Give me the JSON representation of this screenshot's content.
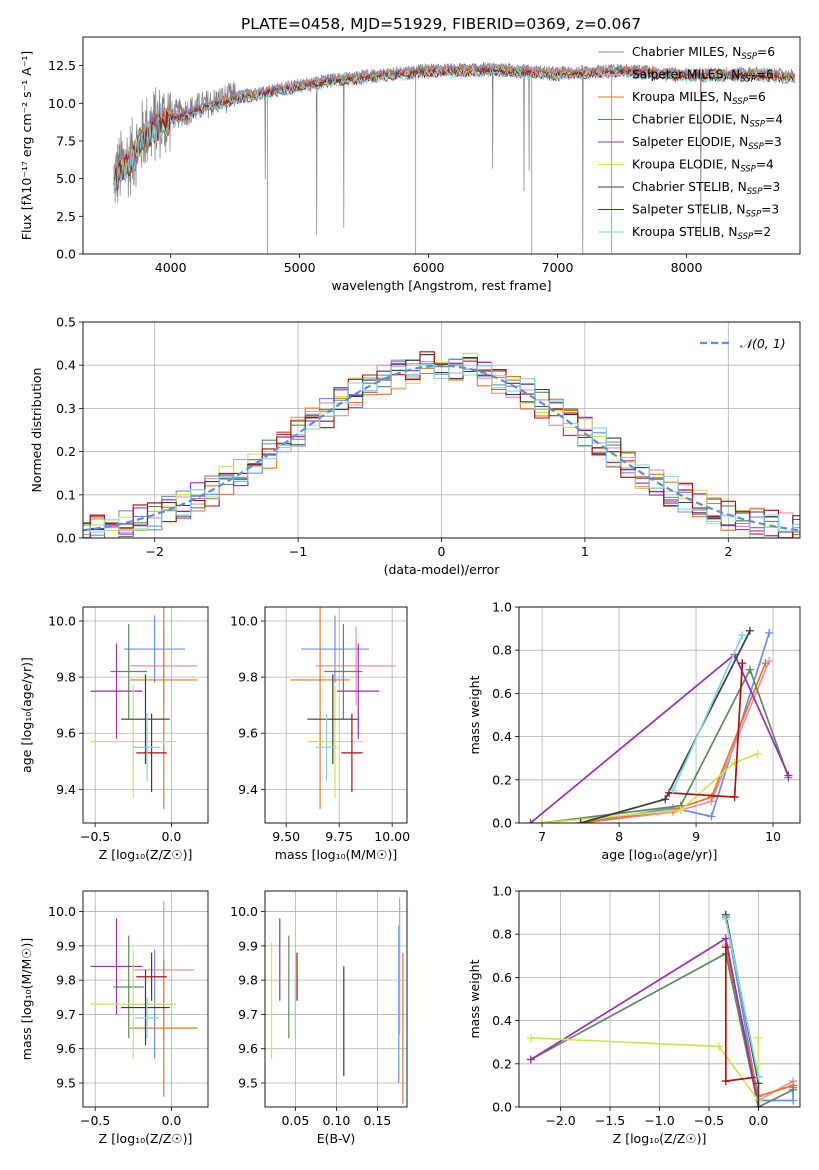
{
  "figure_title": "PLATE=0458, MJD=51929, FIBERID=0369, z=0.067",
  "palette": {
    "Chabrier MILES": "#6b8fe6",
    "Salpeter MILES": "#e58fb8",
    "Kroupa MILES": "#e6781e",
    "Chabrier ELODIE": "#5f8a5f",
    "Salpeter ELODIE": "#9a2fb0",
    "Kroupa ELODIE": "#d2e34f",
    "Chabrier STELIB": "#3d3d3d",
    "Salpeter STELIB": "#b00f0f",
    "Kroupa STELIB": "#7fd6e6",
    "data": "#808080",
    "gaussian": "#5b8fd9"
  },
  "chart_data": [
    {
      "id": "spectrum",
      "type": "line",
      "xlabel": "wavelength [Angstrom, rest frame]",
      "ylabel": "Flux [fλ10⁻¹⁷ erg cm⁻² s⁻¹ A⁻¹]",
      "xlim": [
        3320,
        8880
      ],
      "ylim": [
        0,
        14.4
      ],
      "xticks": [
        4000,
        5000,
        6000,
        7000,
        8000
      ],
      "yticks": [
        0.0,
        2.5,
        5.0,
        7.5,
        10.0,
        12.5
      ],
      "ytick_labels": [
        "0.0",
        "2.5",
        "5.0",
        "7.5",
        "10.0",
        "12.5"
      ],
      "continuum_points": [
        [
          3560,
          5.0
        ],
        [
          3620,
          5.8
        ],
        [
          3700,
          6.5
        ],
        [
          3800,
          8.1
        ],
        [
          3900,
          8.7
        ],
        [
          4000,
          9.2
        ],
        [
          4100,
          9.4
        ],
        [
          4300,
          10.0
        ],
        [
          4500,
          10.5
        ],
        [
          4800,
          11.0
        ],
        [
          5200,
          11.6
        ],
        [
          5600,
          12.0
        ],
        [
          6000,
          12.3
        ],
        [
          6500,
          12.4
        ],
        [
          7000,
          12.1
        ],
        [
          7500,
          12.3
        ],
        [
          8000,
          12.0
        ],
        [
          8500,
          12.1
        ],
        [
          8840,
          11.9
        ]
      ],
      "legend": [
        {
          "label": "Chabrier MILES, N_SSP=6",
          "pre": "Chabrier MILES, N",
          "sub": "SSP",
          "post": "=6",
          "color_key": "Chabrier MILES"
        },
        {
          "label": "Salpeter MILES, N_SSP=6",
          "pre": "Salpeter MILES, N",
          "sub": "SSP",
          "post": "=6",
          "color_key": "Salpeter MILES"
        },
        {
          "label": "Kroupa MILES, N_SSP=6",
          "pre": "Kroupa MILES, N",
          "sub": "SSP",
          "post": "=6",
          "color_key": "Kroupa MILES"
        },
        {
          "label": "Chabrier ELODIE, N_SSP=4",
          "pre": "Chabrier ELODIE, N",
          "sub": "SSP",
          "post": "=4",
          "color_key": "Chabrier ELODIE"
        },
        {
          "label": "Salpeter ELODIE, N_SSP=3",
          "pre": "Salpeter ELODIE, N",
          "sub": "SSP",
          "post": "=3",
          "color_key": "Salpeter ELODIE"
        },
        {
          "label": "Kroupa ELODIE, N_SSP=4",
          "pre": "Kroupa ELODIE, N",
          "sub": "SSP",
          "post": "=4",
          "color_key": "Kroupa ELODIE"
        },
        {
          "label": "Chabrier STELIB, N_SSP=3",
          "pre": "Chabrier STELIB, N",
          "sub": "SSP",
          "post": "=3",
          "color_key": "Chabrier STELIB"
        },
        {
          "label": "Salpeter STELIB, N_SSP=3",
          "pre": "Salpeter STELIB, N",
          "sub": "SSP",
          "post": "=3",
          "color_key": "Salpeter STELIB"
        },
        {
          "label": "Kroupa STELIB, N_SSP=2",
          "pre": "Kroupa STELIB, N",
          "sub": "SSP",
          "post": "=2",
          "color_key": "Kroupa STELIB"
        }
      ]
    },
    {
      "id": "residuals",
      "type": "histogram",
      "xlabel": "(data-model)/error",
      "ylabel": "Normed distribution",
      "xlim": [
        -2.5,
        2.5
      ],
      "ylim": [
        0,
        0.5
      ],
      "xticks": [
        -2,
        -1,
        0,
        1,
        2
      ],
      "xtick_labels": [
        "−2",
        "−1",
        "0",
        "1",
        "2"
      ],
      "yticks": [
        0.0,
        0.1,
        0.2,
        0.3,
        0.4,
        0.5
      ],
      "ytick_labels": [
        "0.0",
        "0.1",
        "0.2",
        "0.3",
        "0.4",
        "0.5"
      ],
      "bin_width": 0.1,
      "reference_curve": {
        "label": "N(0,1)",
        "mean": 0,
        "sigma": 1
      }
    },
    {
      "id": "age_vs_Z",
      "type": "errorbar",
      "xlabel": "Z [log₁₀(Z/Z☉)]",
      "ylabel": "age [log₁₀(age/yr)]",
      "xlim": [
        -0.58,
        0.24
      ],
      "ylim": [
        9.28,
        10.05
      ],
      "xticks": [
        -0.5,
        0.0
      ],
      "xtick_labels": [
        "−0.5",
        "0.0"
      ],
      "yticks": [
        9.4,
        9.6,
        9.8,
        10.0
      ],
      "ytick_labels": [
        "9.4",
        "9.6",
        "9.8",
        "10.0"
      ],
      "points": [
        {
          "series": "Chabrier MILES",
          "x": -0.11,
          "y": 9.9,
          "xerr": 0.2,
          "yerr": 0.12
        },
        {
          "series": "Salpeter MILES",
          "x": -0.05,
          "y": 9.84,
          "xerr": 0.22,
          "yerr": 0.14
        },
        {
          "series": "Kroupa MILES",
          "x": -0.05,
          "y": 9.79,
          "xerr": 0.22,
          "yerr": 0.46
        },
        {
          "series": "Chabrier ELODIE",
          "x": -0.28,
          "y": 9.82,
          "xerr": 0.12,
          "yerr": 0.17
        },
        {
          "series": "Salpeter ELODIE",
          "x": -0.36,
          "y": 9.75,
          "xerr": 0.17,
          "yerr": 0.17
        },
        {
          "series": "Kroupa ELODIE",
          "x": -0.25,
          "y": 9.57,
          "xerr": 0.28,
          "yerr": 0.2
        },
        {
          "series": "Chabrier STELIB",
          "x": -0.17,
          "y": 9.65,
          "xerr": 0.16,
          "yerr": 0.16
        },
        {
          "series": "Salpeter STELIB",
          "x": -0.13,
          "y": 9.53,
          "xerr": 0.1,
          "yerr": 0.14
        },
        {
          "series": "Kroupa STELIB",
          "x": -0.16,
          "y": 9.55,
          "xerr": 0.09,
          "yerr": 0.12
        }
      ]
    },
    {
      "id": "age_vs_mass",
      "type": "errorbar",
      "xlabel": "mass [log₁₀(M/M☉)]",
      "ylabel": "",
      "xlim": [
        9.4,
        10.07
      ],
      "ylim": [
        9.28,
        10.05
      ],
      "xticks": [
        9.5,
        9.75,
        10.0
      ],
      "xtick_labels": [
        "9.50",
        "9.75",
        "10.00"
      ],
      "yticks": [
        9.4,
        9.6,
        9.8,
        10.0
      ],
      "ytick_labels": [
        "9.4",
        "9.6",
        "9.8",
        "10.0"
      ],
      "points": [
        {
          "series": "Chabrier MILES",
          "x": 9.73,
          "y": 9.9,
          "xerr": 0.16,
          "yerr": 0.12
        },
        {
          "series": "Salpeter MILES",
          "x": 9.83,
          "y": 9.84,
          "xerr": 0.19,
          "yerr": 0.14
        },
        {
          "series": "Kroupa MILES",
          "x": 9.66,
          "y": 9.79,
          "xerr": 0.14,
          "yerr": 0.46
        },
        {
          "series": "Chabrier ELODIE",
          "x": 9.77,
          "y": 9.82,
          "xerr": 0.09,
          "yerr": 0.17
        },
        {
          "series": "Salpeter ELODIE",
          "x": 9.84,
          "y": 9.75,
          "xerr": 0.1,
          "yerr": 0.17
        },
        {
          "series": "Kroupa ELODIE",
          "x": 9.73,
          "y": 9.57,
          "xerr": 0.13,
          "yerr": 0.2
        },
        {
          "series": "Chabrier STELIB",
          "x": 9.72,
          "y": 9.65,
          "xerr": 0.12,
          "yerr": 0.16
        },
        {
          "series": "Salpeter STELIB",
          "x": 9.81,
          "y": 9.53,
          "xerr": 0.05,
          "yerr": 0.14
        },
        {
          "series": "Kroupa STELIB",
          "x": 9.69,
          "y": 9.55,
          "xerr": 0.05,
          "yerr": 0.12
        }
      ]
    },
    {
      "id": "weight_vs_age",
      "type": "line",
      "xlabel": "age [log₁₀(age/yr)]",
      "ylabel": "mass weight",
      "xlim": [
        6.7,
        10.35
      ],
      "ylim": [
        0,
        1.0
      ],
      "xticks": [
        7,
        8,
        9,
        10
      ],
      "xtick_labels": [
        "7",
        "8",
        "9",
        "10"
      ],
      "yticks": [
        0.0,
        0.2,
        0.4,
        0.6,
        0.8,
        1.0
      ],
      "ytick_labels": [
        "0.0",
        "0.2",
        "0.4",
        "0.6",
        "0.8",
        "1.0"
      ],
      "series": [
        {
          "series": "Chabrier MILES",
          "points": [
            [
              7.5,
              0.0
            ],
            [
              8.7,
              0.07
            ],
            [
              9.2,
              0.03
            ],
            [
              9.95,
              0.88
            ]
          ]
        },
        {
          "series": "Salpeter MILES",
          "points": [
            [
              7.5,
              0.0
            ],
            [
              8.7,
              0.05
            ],
            [
              9.2,
              0.1
            ],
            [
              9.95,
              0.75
            ]
          ]
        },
        {
          "series": "Kroupa MILES",
          "points": [
            [
              7.5,
              0.0
            ],
            [
              8.7,
              0.06
            ],
            [
              9.2,
              0.12
            ],
            [
              9.9,
              0.74
            ]
          ]
        },
        {
          "series": "Chabrier ELODIE",
          "points": [
            [
              7.0,
              0.0
            ],
            [
              8.8,
              0.08
            ],
            [
              9.7,
              0.71
            ],
            [
              10.2,
              0.21
            ]
          ]
        },
        {
          "series": "Salpeter ELODIE",
          "points": [
            [
              6.85,
              0.0
            ],
            [
              9.5,
              0.78
            ],
            [
              10.2,
              0.22
            ]
          ]
        },
        {
          "series": "Kroupa ELODIE",
          "points": [
            [
              7.0,
              0.0
            ],
            [
              8.8,
              0.06
            ],
            [
              9.5,
              0.28
            ],
            [
              9.8,
              0.32
            ]
          ]
        },
        {
          "series": "Chabrier STELIB",
          "points": [
            [
              7.5,
              0.0
            ],
            [
              8.6,
              0.11
            ],
            [
              9.7,
              0.89
            ]
          ]
        },
        {
          "series": "Salpeter STELIB",
          "points": [
            [
              8.65,
              0.14
            ],
            [
              9.5,
              0.12
            ],
            [
              9.6,
              0.74
            ]
          ]
        },
        {
          "series": "Kroupa STELIB",
          "points": [
            [
              8.7,
              0.15
            ],
            [
              9.6,
              0.87
            ]
          ]
        }
      ]
    },
    {
      "id": "mass_vs_Z",
      "type": "errorbar",
      "xlabel": "Z [log₁₀(Z/Z☉)]",
      "ylabel": "mass [log₁₀(M/M☉)]",
      "xlim": [
        -0.58,
        0.24
      ],
      "ylim": [
        9.43,
        10.06
      ],
      "xticks": [
        -0.5,
        0.0
      ],
      "xtick_labels": [
        "−0.5",
        "0.0"
      ],
      "yticks": [
        9.5,
        9.6,
        9.7,
        9.8,
        9.9,
        10.0
      ],
      "ytick_labels": [
        "9.5",
        "9.6",
        "9.7",
        "9.8",
        "9.9",
        "10.0"
      ],
      "points": [
        {
          "series": "Chabrier MILES",
          "x": -0.11,
          "y": 9.73,
          "xerr": 0.14,
          "yerr": 0.16
        },
        {
          "series": "Salpeter MILES",
          "x": -0.05,
          "y": 9.83,
          "xerr": 0.2,
          "yerr": 0.2
        },
        {
          "series": "Kroupa MILES",
          "x": -0.05,
          "y": 9.66,
          "xerr": 0.22,
          "yerr": 0.2
        },
        {
          "series": "Chabrier ELODIE",
          "x": -0.28,
          "y": 9.78,
          "xerr": 0.1,
          "yerr": 0.15
        },
        {
          "series": "Salpeter ELODIE",
          "x": -0.36,
          "y": 9.84,
          "xerr": 0.17,
          "yerr": 0.14
        },
        {
          "series": "Kroupa ELODIE",
          "x": -0.25,
          "y": 9.73,
          "xerr": 0.28,
          "yerr": 0.16
        },
        {
          "series": "Chabrier STELIB",
          "x": -0.17,
          "y": 9.72,
          "xerr": 0.16,
          "yerr": 0.11
        },
        {
          "series": "Salpeter STELIB",
          "x": -0.13,
          "y": 9.81,
          "xerr": 0.1,
          "yerr": 0.07
        },
        {
          "series": "Kroupa STELIB",
          "x": -0.16,
          "y": 9.69,
          "xerr": 0.08,
          "yerr": 0.06
        }
      ]
    },
    {
      "id": "mass_vs_ebv",
      "type": "errorbar",
      "xlabel": "E(B-V)",
      "ylabel": "",
      "xlim": [
        0.013,
        0.186
      ],
      "ylim": [
        9.43,
        10.06
      ],
      "xticks": [
        0.05,
        0.1,
        0.15
      ],
      "xtick_labels": [
        "0.05",
        "0.10",
        "0.15"
      ],
      "yticks": [
        9.5,
        9.6,
        9.7,
        9.8,
        9.9,
        10.0
      ],
      "ytick_labels": [
        "9.5",
        "9.6",
        "9.7",
        "9.8",
        "9.9",
        "10.0"
      ],
      "points": [
        {
          "series": "Chabrier MILES",
          "x": 0.176,
          "y": 9.73,
          "xerr": 0.0,
          "yerr": 0.23
        },
        {
          "series": "Salpeter MILES",
          "x": 0.177,
          "y": 9.84,
          "xerr": 0.0,
          "yerr": 0.2
        },
        {
          "series": "Kroupa MILES",
          "x": 0.181,
          "y": 9.66,
          "xerr": 0.0,
          "yerr": 0.22
        },
        {
          "series": "Chabrier ELODIE",
          "x": 0.042,
          "y": 9.78,
          "xerr": 0.0,
          "yerr": 0.15
        },
        {
          "series": "Salpeter ELODIE",
          "x": 0.031,
          "y": 9.86,
          "xerr": 0.0,
          "yerr": 0.12
        },
        {
          "series": "Kroupa ELODIE",
          "x": 0.021,
          "y": 9.74,
          "xerr": 0.0,
          "yerr": 0.17
        },
        {
          "series": "Chabrier STELIB",
          "x": 0.109,
          "y": 9.68,
          "xerr": 0.0,
          "yerr": 0.16
        },
        {
          "series": "Salpeter STELIB",
          "x": 0.052,
          "y": 9.81,
          "xerr": 0.0,
          "yerr": 0.07
        },
        {
          "series": "Kroupa STELIB",
          "x": 0.05,
          "y": 9.72,
          "xerr": 0.0,
          "yerr": 0.09
        }
      ]
    },
    {
      "id": "weight_vs_Z",
      "type": "line",
      "xlabel": "Z [log₁₀(Z/Z☉)]",
      "ylabel": "mass weight",
      "xlim": [
        -2.42,
        0.42
      ],
      "ylim": [
        0,
        1.0
      ],
      "xticks": [
        -2.0,
        -1.5,
        -1.0,
        -0.5,
        0.0
      ],
      "xtick_labels": [
        "−2.0",
        "−1.5",
        "−1.0",
        "−0.5",
        "0.0"
      ],
      "yticks": [
        0.0,
        0.2,
        0.4,
        0.6,
        0.8,
        1.0
      ],
      "ytick_labels": [
        "0.0",
        "0.2",
        "0.4",
        "0.6",
        "0.8",
        "1.0"
      ],
      "series": [
        {
          "series": "Chabrier MILES",
          "points": [
            [
              -0.33,
              0.88
            ],
            [
              0.0,
              0.03
            ],
            [
              0.35,
              0.03
            ],
            [
              0.35,
              0.09
            ]
          ]
        },
        {
          "series": "Salpeter MILES",
          "points": [
            [
              -0.33,
              0.75
            ],
            [
              0.0,
              0.03
            ],
            [
              0.35,
              0.12
            ]
          ]
        },
        {
          "series": "Kroupa MILES",
          "points": [
            [
              -0.33,
              0.74
            ],
            [
              0.0,
              0.05
            ],
            [
              0.35,
              0.1
            ]
          ]
        },
        {
          "series": "Chabrier ELODIE",
          "points": [
            [
              -2.3,
              0.22
            ],
            [
              -0.33,
              0.71
            ],
            [
              0.0,
              0.0
            ],
            [
              0.35,
              0.08
            ]
          ]
        },
        {
          "series": "Salpeter ELODIE",
          "points": [
            [
              -2.3,
              0.22
            ],
            [
              -0.33,
              0.78
            ],
            [
              0.0,
              0.0
            ]
          ]
        },
        {
          "series": "Kroupa ELODIE",
          "points": [
            [
              -2.3,
              0.32
            ],
            [
              -0.4,
              0.28
            ],
            [
              0.0,
              0.03
            ],
            [
              0.0,
              0.32
            ]
          ]
        },
        {
          "series": "Chabrier STELIB",
          "points": [
            [
              -0.33,
              0.89
            ],
            [
              0.0,
              0.11
            ],
            [
              0.0,
              0.0
            ]
          ]
        },
        {
          "series": "Salpeter STELIB",
          "points": [
            [
              -0.33,
              0.74
            ],
            [
              -0.33,
              0.12
            ],
            [
              0.0,
              0.14
            ]
          ]
        },
        {
          "series": "Kroupa STELIB",
          "points": [
            [
              -0.33,
              0.87
            ],
            [
              0.0,
              0.14
            ]
          ]
        }
      ]
    }
  ]
}
